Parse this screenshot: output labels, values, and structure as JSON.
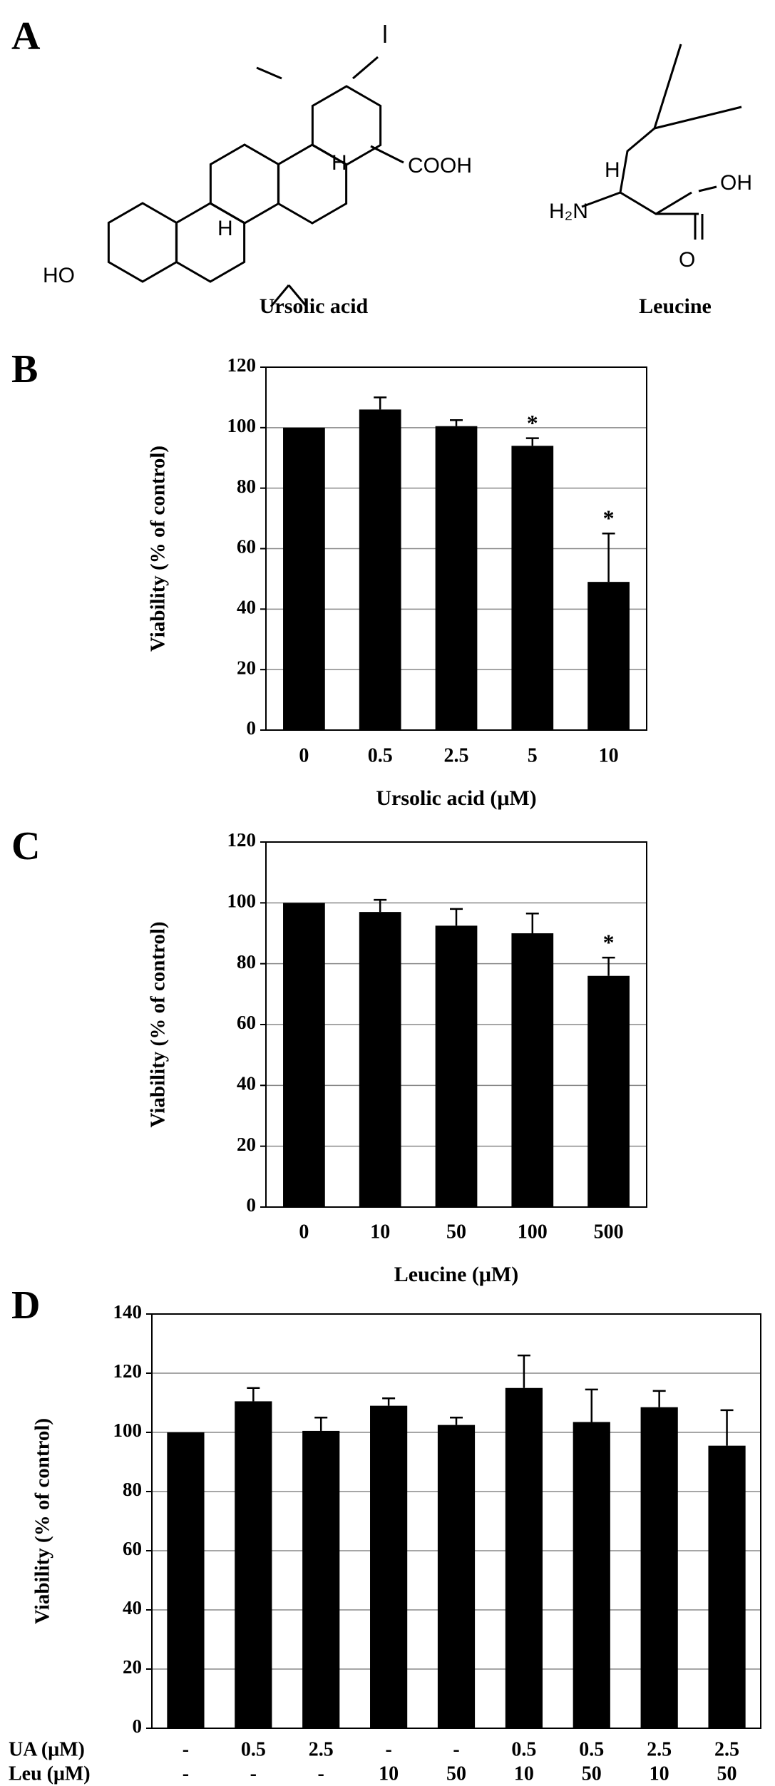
{
  "panel_a": {
    "label": "A",
    "structures": [
      {
        "name": "Ursolic acid",
        "atoms": [
          "COOH",
          "H",
          "H",
          "HO"
        ]
      },
      {
        "name": "Leucine",
        "atoms": [
          "H",
          "H₂N",
          "OH",
          "O"
        ]
      }
    ]
  },
  "chart_data": [
    {
      "panel": "B",
      "type": "bar",
      "categories": [
        "0",
        "0.5",
        "2.5",
        "5",
        "10"
      ],
      "values": [
        100,
        106,
        100.5,
        94,
        49
      ],
      "errors": [
        null,
        4,
        2,
        2.5,
        16
      ],
      "markers": [
        null,
        null,
        null,
        "*",
        "*"
      ],
      "x_label": "Ursolic acid (μM)",
      "y_label": "Viability (% of control)",
      "ylim": [
        0,
        120
      ],
      "yticks": [
        0,
        20,
        40,
        60,
        80,
        100,
        120
      ],
      "grid": true,
      "color": "#000000"
    },
    {
      "panel": "C",
      "type": "bar",
      "categories": [
        "0",
        "10",
        "50",
        "100",
        "500"
      ],
      "values": [
        100,
        97,
        92.5,
        90,
        76
      ],
      "errors": [
        null,
        4,
        5.5,
        6.5,
        6
      ],
      "markers": [
        null,
        null,
        null,
        null,
        "*"
      ],
      "x_label": "Leucine (μM)",
      "y_label": "Viability (% of control)",
      "ylim": [
        0,
        120
      ],
      "yticks": [
        0,
        20,
        40,
        60,
        80,
        100,
        120
      ],
      "grid": true,
      "color": "#000000"
    },
    {
      "panel": "D",
      "type": "bar",
      "category_rows": [
        {
          "name": "UA (μM)",
          "labels": [
            "-",
            "0.5",
            "2.5",
            "-",
            "-",
            "0.5",
            "0.5",
            "2.5",
            "2.5"
          ]
        },
        {
          "name": "Leu (μM)",
          "labels": [
            "-",
            "-",
            "-",
            "10",
            "50",
            "10",
            "50",
            "10",
            "50"
          ]
        }
      ],
      "values": [
        100,
        110.5,
        100.5,
        109,
        102.5,
        115,
        103.5,
        108.5,
        95.5
      ],
      "errors": [
        null,
        4.5,
        4.5,
        2.5,
        2.5,
        11,
        11,
        5.5,
        12
      ],
      "y_label": "Viability (% of control)",
      "ylim": [
        0,
        140
      ],
      "yticks": [
        0,
        20,
        40,
        60,
        80,
        100,
        120,
        140
      ],
      "grid": true,
      "color": "#000000"
    }
  ]
}
